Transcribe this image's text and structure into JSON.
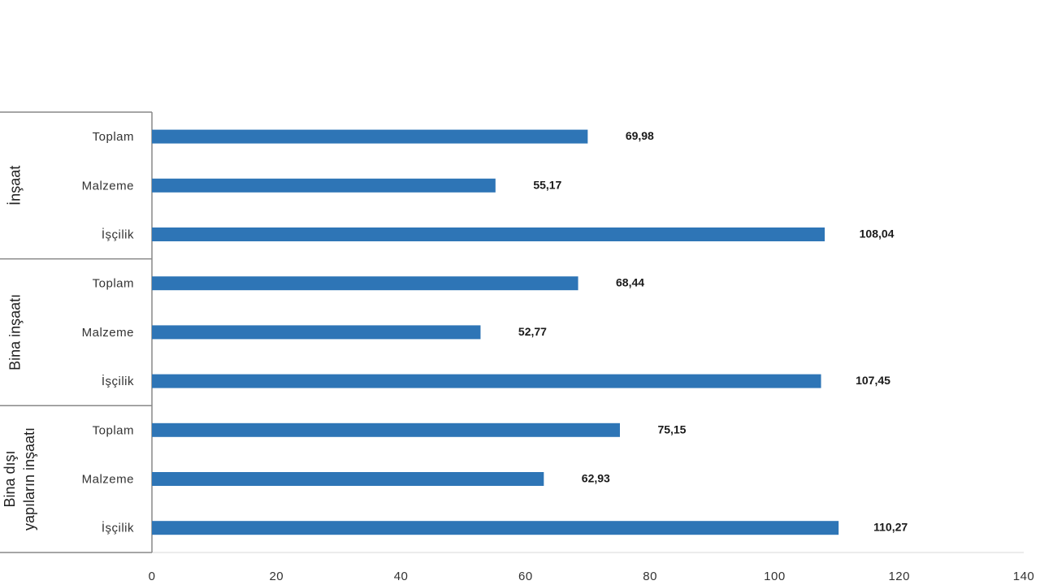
{
  "chart_data": {
    "type": "bar",
    "orientation": "horizontal",
    "groups": [
      {
        "label_lines": [
          "İnşaat"
        ],
        "categories": [
          "Toplam",
          "Malzeme",
          "İşçilik"
        ],
        "values": [
          69.98,
          55.17,
          108.04
        ],
        "value_labels": [
          "69,98",
          "55,17",
          "108,04"
        ]
      },
      {
        "label_lines": [
          "Bina inşaatı"
        ],
        "categories": [
          "Toplam",
          "Malzeme",
          "İşçilik"
        ],
        "values": [
          68.44,
          52.77,
          107.45
        ],
        "value_labels": [
          "68,44",
          "52,77",
          "107,45"
        ]
      },
      {
        "label_lines": [
          "Bina dışı",
          "yapıların inşaatı"
        ],
        "categories": [
          "Toplam",
          "Malzeme",
          "İşçilik"
        ],
        "values": [
          75.15,
          62.93,
          110.27
        ],
        "value_labels": [
          "75,15",
          "62,93",
          "110,27"
        ]
      }
    ],
    "xlim": [
      0,
      140
    ],
    "xticks": [
      0,
      20,
      40,
      60,
      80,
      100,
      120,
      140
    ],
    "grid": false,
    "legend": "none",
    "bar_color": "#2E75B6",
    "axis_color": "#d9d9d9",
    "group_divider_color": "#888888"
  }
}
